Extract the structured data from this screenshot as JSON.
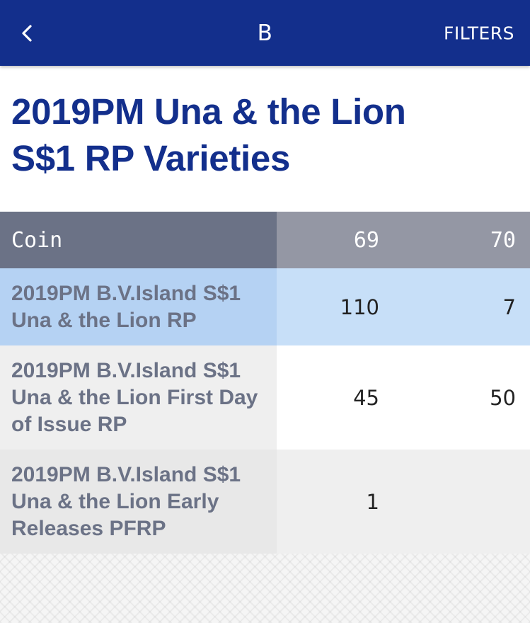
{
  "topbar": {
    "back_icon": "chevron-left-icon",
    "title": "B",
    "filters_label": "FILTERS",
    "background_color": "#132f8c"
  },
  "page": {
    "title": "2019PM Una & the Lion S$1 RP Varieties",
    "title_color": "#132f8c"
  },
  "table": {
    "columns": [
      "Coin",
      "69",
      "70"
    ],
    "rows": [
      {
        "coin": "2019PM B.V.Island S$1 Una & the Lion RP",
        "c69": "110",
        "c70": "7",
        "highlighted": true
      },
      {
        "coin": "2019PM B.V.Island S$1 Una & the Lion First Day of Issue RP",
        "c69": "45",
        "c70": "50"
      },
      {
        "coin": "2019PM B.V.Island S$1 Una & the Lion Early Releases PFRP",
        "c69": "1",
        "c70": ""
      }
    ]
  }
}
